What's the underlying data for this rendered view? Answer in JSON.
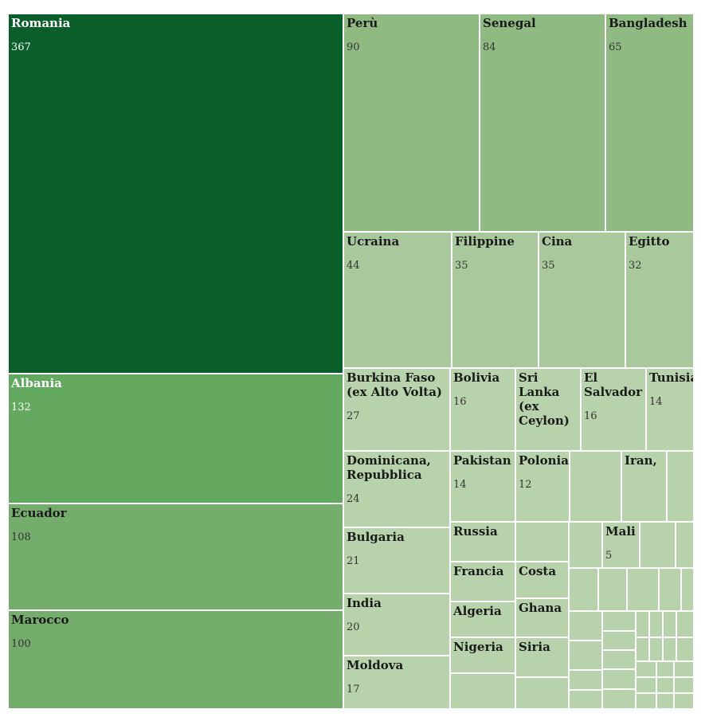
{
  "chart_data": {
    "type": "treemap",
    "colors": {
      "darkest": "#0a5e2a",
      "dark": "#62a85f",
      "medium": "#74ad6c",
      "light": "#8fbb82",
      "lighter": "#a9c99c",
      "lightest": "#b8d3ac"
    },
    "items": [
      {
        "name": "Romania",
        "value": 367,
        "shade": "darkest"
      },
      {
        "name": "Albania",
        "value": 132,
        "shade": "dark"
      },
      {
        "name": "Ecuador",
        "value": 108,
        "shade": "medium"
      },
      {
        "name": "Marocco",
        "value": 100,
        "shade": "medium"
      },
      {
        "name": "Perù",
        "value": 90,
        "shade": "light"
      },
      {
        "name": "Senegal",
        "value": 84,
        "shade": "light"
      },
      {
        "name": "Bangladesh",
        "value": 65,
        "shade": "light"
      },
      {
        "name": "Ucraina",
        "value": 44,
        "shade": "lighter"
      },
      {
        "name": "Filippine",
        "value": 35,
        "shade": "lighter"
      },
      {
        "name": "Cina",
        "value": 35,
        "shade": "lighter"
      },
      {
        "name": "Egitto",
        "value": 32,
        "shade": "lighter"
      },
      {
        "name": "Burkina Faso\n(ex Alto Volta)",
        "value": 27,
        "shade": "lightest"
      },
      {
        "name": "Bolivia",
        "value": 16,
        "shade": "lightest"
      },
      {
        "name": "Sri\nLanka\n(ex\nCeylon)",
        "value": null,
        "shade": "lightest"
      },
      {
        "name": "El\nSalvador",
        "value": 16,
        "shade": "lightest"
      },
      {
        "name": "Tunisia",
        "value": 14,
        "shade": "lightest"
      },
      {
        "name": "Dominicana,\nRepubblica",
        "value": 24,
        "shade": "lightest"
      },
      {
        "name": "Pakistan",
        "value": 14,
        "shade": "lightest"
      },
      {
        "name": "Polonia",
        "value": 12,
        "shade": "lightest"
      },
      {
        "name": "",
        "value": null,
        "shade": "lightest"
      },
      {
        "name": "Iran,",
        "value": null,
        "shade": "lightest"
      },
      {
        "name": "",
        "value": null,
        "shade": "lightest"
      },
      {
        "name": "Bulgaria",
        "value": 21,
        "shade": "lightest"
      },
      {
        "name": "Russia",
        "value": null,
        "shade": "lightest"
      },
      {
        "name": "",
        "value": null,
        "shade": "lightest"
      },
      {
        "name": "Mali",
        "value": 5,
        "shade": "lightest"
      },
      {
        "name": "India",
        "value": 20,
        "shade": "lightest"
      },
      {
        "name": "Francia",
        "value": null,
        "shade": "lightest"
      },
      {
        "name": "Costa",
        "value": null,
        "shade": "lightest"
      },
      {
        "name": "Algeria",
        "value": null,
        "shade": "lightest"
      },
      {
        "name": "Ghana",
        "value": null,
        "shade": "lightest"
      },
      {
        "name": "Moldova",
        "value": 17,
        "shade": "lightest"
      },
      {
        "name": "Nigeria",
        "value": null,
        "shade": "lightest"
      },
      {
        "name": "Siria",
        "value": null,
        "shade": "lightest"
      }
    ]
  }
}
